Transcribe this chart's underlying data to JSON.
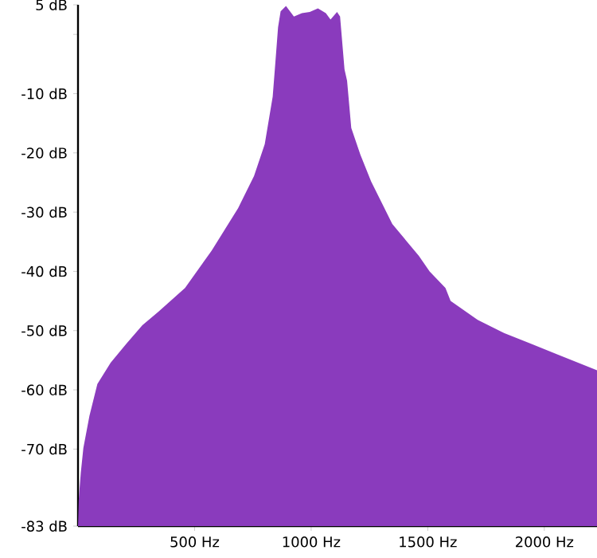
{
  "chart_data": {
    "type": "area",
    "color": "#8a3bbd",
    "x": [
      0,
      3,
      12,
      23,
      49,
      83,
      140,
      208,
      276,
      345,
      459,
      573,
      687,
      755,
      801,
      835,
      846,
      858,
      869,
      892,
      926,
      960,
      994,
      1029,
      1063,
      1083,
      1111,
      1124,
      1143,
      1154,
      1172,
      1211,
      1257,
      1348,
      1462,
      1508,
      1576,
      1598,
      1714,
      1827,
      1941,
      2055,
      2169,
      2226
    ],
    "values": [
      -83,
      -78.6,
      -74,
      -69.8,
      -64.4,
      -59,
      -55.4,
      -52.2,
      -49.1,
      -46.8,
      -42.8,
      -36.5,
      -29.3,
      -23.9,
      -18.5,
      -10.5,
      -5,
      1.2,
      3.9,
      4.8,
      3,
      3.6,
      3.8,
      4.4,
      3.6,
      2.5,
      3.8,
      3,
      -5.9,
      -7.8,
      -15.8,
      -20.3,
      -24.8,
      -32,
      -37.4,
      -40,
      -42.8,
      -45,
      -48.2,
      -50.4,
      -52.2,
      -54,
      -55.8,
      -56.7
    ],
    "xlim": [
      0,
      2226
    ],
    "ylim": [
      -83,
      5
    ],
    "xticks": [
      {
        "value": 500,
        "label": "500 Hz"
      },
      {
        "value": 1000,
        "label": "1000 Hz"
      },
      {
        "value": 1500,
        "label": "1500 Hz"
      },
      {
        "value": 2000,
        "label": "2000 Hz"
      }
    ],
    "yticks": [
      {
        "value": 5,
        "label": "5 dB"
      },
      {
        "value": 0,
        "label": null
      },
      {
        "value": -10,
        "label": "-10 dB"
      },
      {
        "value": -20,
        "label": "-20 dB"
      },
      {
        "value": -30,
        "label": "-30 dB"
      },
      {
        "value": -40,
        "label": "-40 dB"
      },
      {
        "value": -50,
        "label": "-50 dB"
      },
      {
        "value": -60,
        "label": "-60 dB"
      },
      {
        "value": -70,
        "label": "-70 dB"
      },
      {
        "value": -83,
        "label": "-83 dB"
      }
    ],
    "grid": false
  }
}
